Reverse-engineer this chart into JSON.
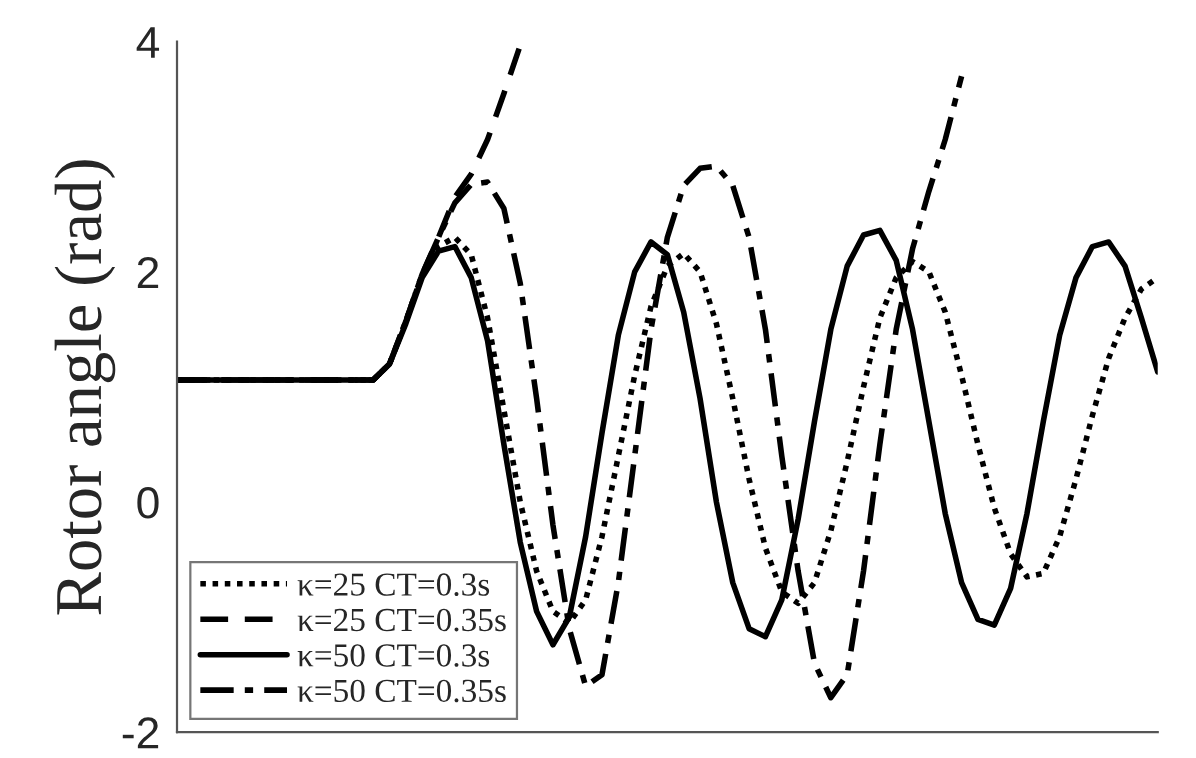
{
  "chart_data": {
    "type": "line",
    "ylabel": "Rotor angle (rad)",
    "categories": [
      null,
      null,
      null,
      null,
      null,
      null,
      null,
      null,
      null,
      null,
      null,
      null,
      null,
      null,
      null,
      null,
      null,
      null,
      null,
      null,
      null,
      null,
      null,
      null,
      null,
      null,
      null,
      null,
      null,
      null,
      null,
      null,
      null,
      null,
      null,
      null,
      null,
      null,
      null,
      null,
      null,
      null,
      null,
      null,
      null,
      null,
      null,
      null,
      null,
      null,
      null,
      null,
      null,
      null,
      null,
      null,
      null,
      null,
      null,
      null,
      null
    ],
    "series": [
      {
        "name": "κ=25 CT=0.3s",
        "color": "#000000",
        "line_style": "dotted",
        "values": [
          1.06,
          1.06,
          1.06,
          1.06,
          1.06,
          1.06,
          1.06,
          1.06,
          1.06,
          1.06,
          1.06,
          1.06,
          1.06,
          1.2,
          1.57,
          1.98,
          2.22,
          2.3,
          2.15,
          1.6,
          0.8,
          0.0,
          -0.6,
          -0.95,
          -1.05,
          -0.85,
          -0.3,
          0.4,
          1.1,
          1.7,
          2.05,
          2.16,
          2.0,
          1.55,
          0.9,
          0.2,
          -0.4,
          -0.78,
          -0.88,
          -0.7,
          -0.25,
          0.35,
          1.0,
          1.6,
          1.95,
          2.09,
          2.0,
          1.65,
          1.1,
          0.5,
          -0.05,
          -0.45,
          -0.65,
          -0.62,
          -0.3,
          0.2,
          0.75,
          1.25,
          1.6,
          1.85,
          1.95
        ]
      },
      {
        "name": "κ=25 CT=0.35s",
        "color": "#000000",
        "line_style": "dashed",
        "values": [
          1.06,
          1.06,
          1.06,
          1.06,
          1.06,
          1.06,
          1.06,
          1.06,
          1.06,
          1.06,
          1.06,
          1.06,
          1.06,
          1.2,
          1.57,
          1.98,
          2.3,
          2.65,
          2.85,
          3.15,
          3.55,
          3.97,
          null,
          null,
          null,
          null,
          null,
          null,
          null,
          null,
          null,
          null,
          null,
          null,
          null,
          null,
          null,
          null,
          null,
          null,
          null,
          null,
          null,
          null,
          null,
          null,
          null,
          null,
          null,
          null,
          null,
          null,
          null,
          null,
          null,
          null,
          null,
          null,
          null,
          null,
          null
        ]
      },
      {
        "name": "κ=50 CT=0.3s",
        "color": "#000000",
        "line_style": "solid",
        "values": [
          1.06,
          1.06,
          1.06,
          1.06,
          1.06,
          1.06,
          1.06,
          1.06,
          1.06,
          1.06,
          1.06,
          1.06,
          1.06,
          1.2,
          1.55,
          1.95,
          2.18,
          2.22,
          1.95,
          1.4,
          0.5,
          -0.35,
          -0.95,
          -1.24,
          -1.0,
          -0.3,
          0.6,
          1.45,
          2.0,
          2.26,
          2.15,
          1.65,
          0.9,
          0.0,
          -0.7,
          -1.1,
          -1.17,
          -0.85,
          -0.15,
          0.7,
          1.5,
          2.05,
          2.32,
          2.36,
          2.1,
          1.5,
          0.7,
          -0.1,
          -0.7,
          -1.02,
          -1.07,
          -0.75,
          -0.1,
          0.7,
          1.45,
          1.95,
          2.22,
          2.26,
          2.05,
          1.6,
          1.13
        ]
      },
      {
        "name": "κ=50 CT=0.35s",
        "color": "#000000",
        "line_style": "dashdot",
        "values": [
          1.06,
          1.06,
          1.06,
          1.06,
          1.06,
          1.06,
          1.06,
          1.06,
          1.06,
          1.06,
          1.06,
          1.06,
          1.06,
          1.2,
          1.57,
          1.98,
          2.3,
          2.6,
          2.76,
          2.78,
          2.55,
          1.9,
          0.9,
          -0.2,
          -1.1,
          -1.6,
          -1.5,
          -0.7,
          0.4,
          1.5,
          2.3,
          2.75,
          2.9,
          2.92,
          2.75,
          2.3,
          1.5,
          0.4,
          -0.6,
          -1.4,
          -1.7,
          -1.5,
          -0.6,
          0.5,
          1.5,
          2.2,
          2.7,
          3.15,
          3.7,
          null,
          null,
          null,
          null,
          null,
          null,
          null,
          null,
          null,
          null,
          null,
          null
        ]
      }
    ],
    "ylim": [
      -2,
      4
    ],
    "yticks": [
      -2,
      0,
      2,
      4
    ],
    "grid": false,
    "legend": "bottom left",
    "tick_labels": "y"
  }
}
